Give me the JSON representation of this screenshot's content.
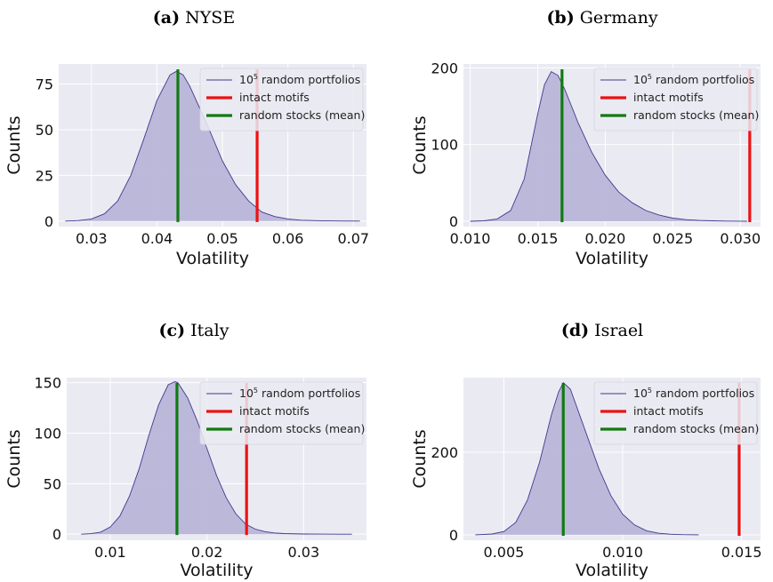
{
  "chart_data": [
    {
      "type": "area",
      "caption_letter": "(a)",
      "caption_text": "NYSE",
      "xlabel": "Volatility",
      "ylabel": "Counts",
      "xlim": [
        0.025,
        0.072
      ],
      "ylim": [
        -3,
        86
      ],
      "xticks": [
        0.03,
        0.04,
        0.05,
        0.06,
        0.07
      ],
      "xtick_labels": [
        "0.03",
        "0.04",
        "0.05",
        "0.06",
        "0.07"
      ],
      "yticks": [
        0,
        25,
        50,
        75
      ],
      "ytick_labels": [
        "0",
        "25",
        "50",
        "75"
      ],
      "grid": true,
      "legend_placement": "top-right",
      "density": {
        "x": [
          0.026,
          0.028,
          0.03,
          0.032,
          0.034,
          0.036,
          0.038,
          0.04,
          0.042,
          0.043,
          0.044,
          0.045,
          0.046,
          0.048,
          0.05,
          0.052,
          0.054,
          0.056,
          0.058,
          0.06,
          0.062,
          0.065,
          0.068,
          0.071
        ],
        "y": [
          0,
          0.3,
          1.2,
          4,
          11,
          25,
          45,
          66,
          80,
          82,
          80,
          74,
          66,
          50,
          33,
          20,
          11,
          5,
          2.5,
          1.2,
          0.5,
          0.2,
          0.05,
          0
        ]
      },
      "vlines": [
        {
          "x": 0.0553,
          "color": "#ee1111"
        },
        {
          "x": 0.0432,
          "color": "#117a11"
        }
      ],
      "legend_pre": "10",
      "legend_sup": "5",
      "legend_post": " random portfolios",
      "legend_labels": [
        "intact motifs",
        "random stocks (mean)"
      ]
    },
    {
      "type": "area",
      "caption_letter": "(b)",
      "caption_text": "Germany",
      "xlabel": "Volatility",
      "ylabel": "Counts",
      "xlim": [
        0.0095,
        0.0315
      ],
      "ylim": [
        -7,
        205
      ],
      "xticks": [
        0.01,
        0.015,
        0.02,
        0.025,
        0.03
      ],
      "xtick_labels": [
        "0.010",
        "0.015",
        "0.020",
        "0.025",
        "0.030"
      ],
      "yticks": [
        0,
        100,
        200
      ],
      "ytick_labels": [
        "0",
        "100",
        "200"
      ],
      "grid": true,
      "legend_placement": "top-right",
      "density": {
        "x": [
          0.01,
          0.011,
          0.012,
          0.013,
          0.014,
          0.015,
          0.0155,
          0.016,
          0.0165,
          0.017,
          0.0175,
          0.018,
          0.019,
          0.02,
          0.021,
          0.022,
          0.023,
          0.024,
          0.025,
          0.026,
          0.027,
          0.028,
          0.029,
          0.03,
          0.0305
        ],
        "y": [
          0,
          0.5,
          3,
          14,
          55,
          140,
          178,
          195,
          190,
          172,
          150,
          128,
          90,
          60,
          38,
          24,
          14,
          8,
          4,
          2,
          1,
          0.5,
          0.2,
          0.05,
          0
        ]
      },
      "vlines": [
        {
          "x": 0.0307,
          "color": "#ee1111"
        },
        {
          "x": 0.0168,
          "color": "#117a11"
        }
      ],
      "legend_pre": "10",
      "legend_sup": "5",
      "legend_post": " random portfolios",
      "legend_labels": [
        "intact motifs",
        "random stocks (mean)"
      ]
    },
    {
      "type": "area",
      "caption_letter": "(c)",
      "caption_text": "Italy",
      "xlabel": "Volatility",
      "ylabel": "Counts",
      "xlim": [
        0.0055,
        0.0365
      ],
      "ylim": [
        -6,
        155
      ],
      "xticks": [
        0.01,
        0.02,
        0.03
      ],
      "xtick_labels": [
        "0.01",
        "0.02",
        "0.03"
      ],
      "yticks": [
        0,
        50,
        100,
        150
      ],
      "ytick_labels": [
        "0",
        "50",
        "100",
        "150"
      ],
      "grid": true,
      "legend_placement": "top-right",
      "density": {
        "x": [
          0.007,
          0.008,
          0.009,
          0.01,
          0.011,
          0.012,
          0.013,
          0.014,
          0.015,
          0.016,
          0.0167,
          0.017,
          0.018,
          0.019,
          0.02,
          0.021,
          0.022,
          0.023,
          0.024,
          0.025,
          0.026,
          0.027,
          0.028,
          0.03,
          0.032,
          0.035
        ],
        "y": [
          0,
          0.5,
          2,
          7,
          18,
          38,
          65,
          98,
          128,
          148,
          151,
          150,
          135,
          112,
          85,
          58,
          36,
          20,
          10,
          5,
          2.5,
          1.2,
          0.6,
          0.2,
          0.05,
          0
        ]
      },
      "vlines": [
        {
          "x": 0.0241,
          "color": "#ee1111"
        },
        {
          "x": 0.0169,
          "color": "#117a11"
        }
      ],
      "legend_pre": "10",
      "legend_sup": "5",
      "legend_post": " random portfolios",
      "legend_labels": [
        "intact motifs",
        "random stocks (mean)"
      ]
    },
    {
      "type": "area",
      "caption_letter": "(d)",
      "caption_text": "Israel",
      "xlabel": "Volatility",
      "ylabel": "Counts",
      "xlim": [
        0.0033,
        0.0158
      ],
      "ylim": [
        -13,
        380
      ],
      "xticks": [
        0.005,
        0.01,
        0.015
      ],
      "xtick_labels": [
        "0.005",
        "0.010",
        "0.015"
      ],
      "yticks": [
        0,
        200
      ],
      "ytick_labels": [
        "0",
        "200"
      ],
      "grid": true,
      "legend_placement": "top-right",
      "density": {
        "x": [
          0.0038,
          0.0045,
          0.005,
          0.0055,
          0.006,
          0.0065,
          0.007,
          0.0073,
          0.0075,
          0.0078,
          0.008,
          0.0085,
          0.009,
          0.0095,
          0.01,
          0.0105,
          0.011,
          0.0115,
          0.012,
          0.0125,
          0.0132
        ],
        "y": [
          0,
          2,
          8,
          30,
          85,
          175,
          290,
          345,
          368,
          352,
          320,
          240,
          160,
          95,
          50,
          24,
          10,
          4,
          1.5,
          0.5,
          0
        ]
      },
      "vlines": [
        {
          "x": 0.0149,
          "color": "#ee1111"
        },
        {
          "x": 0.0075,
          "color": "#117a11"
        }
      ],
      "legend_pre": "10",
      "legend_sup": "5",
      "legend_post": " random portfolios",
      "legend_labels": [
        "intact motifs",
        "random stocks (mean)"
      ]
    }
  ],
  "colors": {
    "panel_bg": "#eaeaf2",
    "grid": "#ffffff",
    "fill": "#b9b5d8",
    "edge": "#3f3b8f",
    "intact": "#ee1111",
    "random_mean": "#117a11"
  }
}
